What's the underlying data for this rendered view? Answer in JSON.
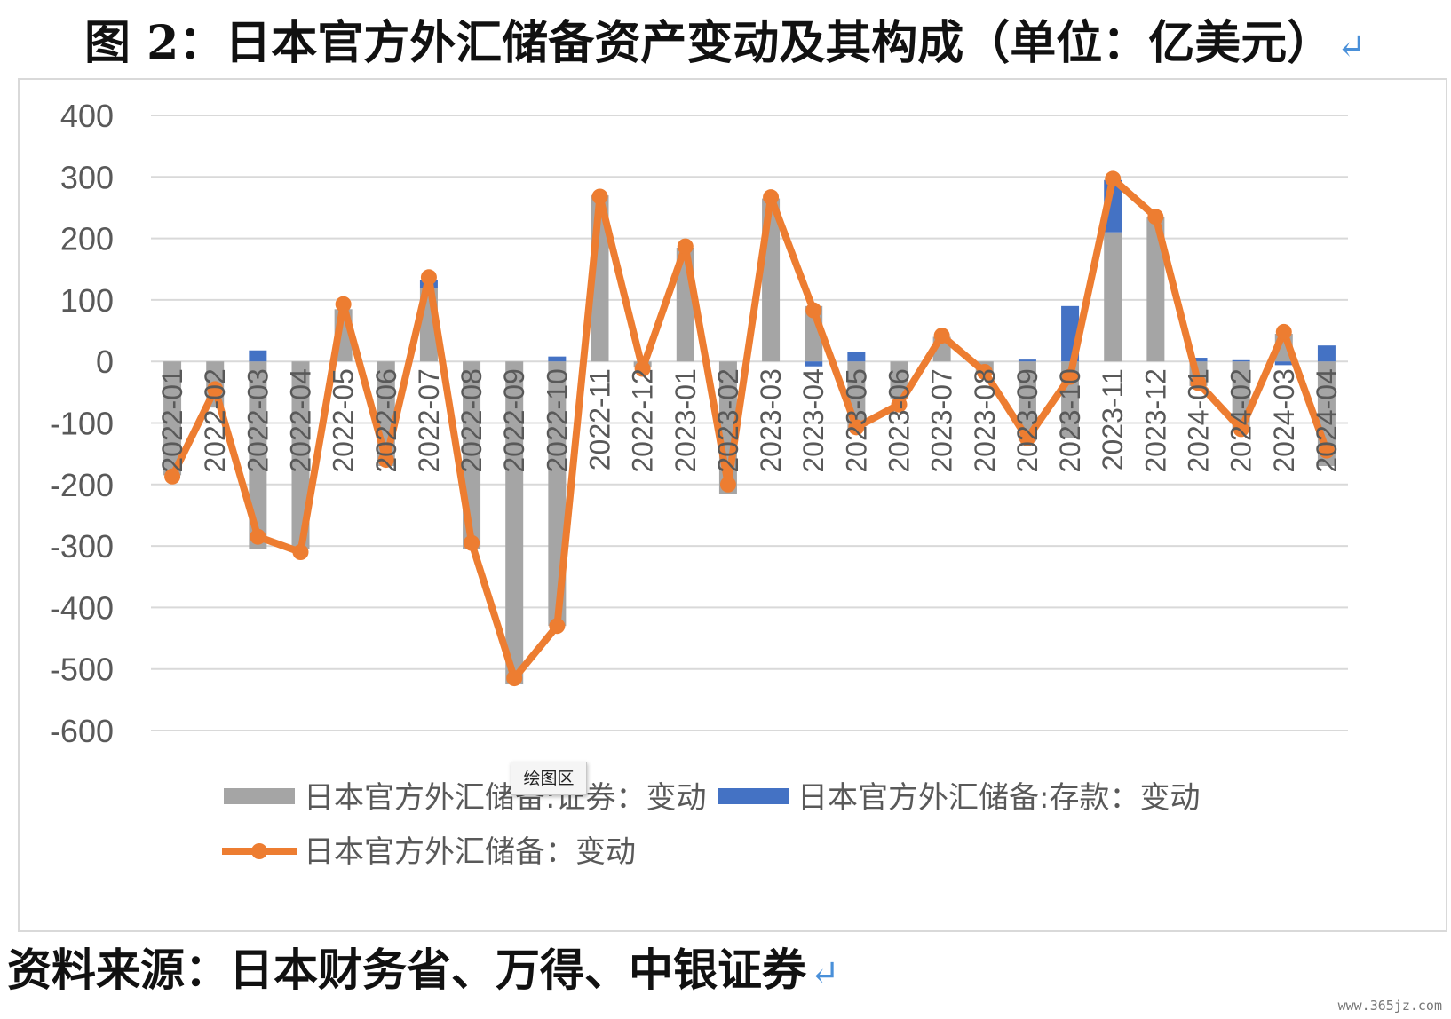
{
  "title": "图 2：日本官方外汇储备资产变动及其构成（单位：亿美元）",
  "source": "资料来源：日本财务省、万得、中银证券",
  "tooltip": "绘图区",
  "watermark": "www.365jz.com",
  "colors": {
    "securities": "#a5a5a5",
    "deposits": "#4472c4",
    "total": "#ed7d31",
    "grid": "#d9d9d9",
    "axis_text": "#595959"
  },
  "chart_data": {
    "type": "bar",
    "stacked": true,
    "categories": [
      "2022-01",
      "2022-02",
      "2022-03",
      "2022-04",
      "2022-05",
      "2022-06",
      "2022-07",
      "2022-08",
      "2022-09",
      "2022-10",
      "2022-11",
      "2022-12",
      "2023-01",
      "2023-02",
      "2023-03",
      "2023-04",
      "2023-05",
      "2023-06",
      "2023-07",
      "2023-08",
      "2023-09",
      "2023-10",
      "2023-11",
      "2023-12",
      "2024-01",
      "2024-02",
      "2024-03",
      "2024-04"
    ],
    "ylim": [
      -600,
      400
    ],
    "yticks": [
      400,
      300,
      200,
      100,
      0,
      -100,
      -200,
      -300,
      -400,
      -500,
      -600
    ],
    "grid": true,
    "legend_position": "bottom",
    "series": [
      {
        "name": "日本官方外汇储备:证券：变动",
        "kind": "bar",
        "values": [
          -185,
          -75,
          -305,
          -305,
          85,
          -170,
          120,
          -305,
          -525,
          -430,
          270,
          -10,
          185,
          -215,
          265,
          90,
          -110,
          -60,
          40,
          -20,
          -130,
          -125,
          210,
          235,
          -40,
          -110,
          45,
          -170
        ]
      },
      {
        "name": "日本官方外汇储备:存款：变动",
        "kind": "bar",
        "values": [
          0,
          0,
          18,
          0,
          0,
          0,
          12,
          0,
          0,
          8,
          0,
          0,
          0,
          0,
          0,
          -8,
          16,
          0,
          0,
          0,
          3,
          90,
          85,
          0,
          6,
          2,
          -6,
          26
        ]
      },
      {
        "name": "日本官方外汇储备：变动",
        "kind": "line",
        "values": [
          -187,
          -45,
          -285,
          -310,
          93,
          -160,
          137,
          -295,
          -515,
          -430,
          268,
          -12,
          187,
          -200,
          267,
          83,
          -107,
          -70,
          42,
          -17,
          -125,
          -25,
          297,
          235,
          -35,
          -110,
          48,
          -145
        ]
      }
    ]
  }
}
